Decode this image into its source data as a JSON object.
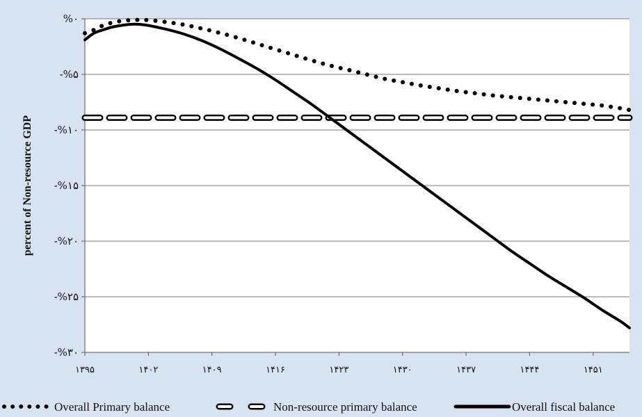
{
  "chart_data": {
    "type": "line",
    "title": "",
    "xlabel": "",
    "ylabel": "percent of Non-resource GDP",
    "xlim": [
      1395,
      1455
    ],
    "ylim": [
      -30,
      0
    ],
    "y_ticks": [
      {
        "value": 0,
        "label": "%۰"
      },
      {
        "value": -5,
        "label": "-%۵"
      },
      {
        "value": -10,
        "label": "-%۱۰"
      },
      {
        "value": -15,
        "label": "-%۱۵"
      },
      {
        "value": -20,
        "label": "-%۲۰"
      },
      {
        "value": -25,
        "label": "-%۲۵"
      },
      {
        "value": -30,
        "label": "-%۳۰"
      }
    ],
    "x_ticks": [
      {
        "value": 1395,
        "label": "۱۳۹۵"
      },
      {
        "value": 1402,
        "label": "۱۴۰۲"
      },
      {
        "value": 1409,
        "label": "۱۴۰۹"
      },
      {
        "value": 1416,
        "label": "۱۴۱۶"
      },
      {
        "value": 1423,
        "label": "۱۴۲۳"
      },
      {
        "value": 1430,
        "label": "۱۴۳۰"
      },
      {
        "value": 1437,
        "label": "۱۴۳۷"
      },
      {
        "value": 1444,
        "label": "۱۴۴۴"
      },
      {
        "value": 1451,
        "label": "۱۴۵۱"
      }
    ],
    "grid": true,
    "legend_position": "bottom",
    "series": [
      {
        "name": "Overall Primary balance",
        "style": "dotted",
        "color": "#000000",
        "points": [
          [
            1395,
            -1.3
          ],
          [
            1396,
            -1.0
          ],
          [
            1397,
            -0.6
          ],
          [
            1398,
            -0.35
          ],
          [
            1399,
            -0.2
          ],
          [
            1400,
            -0.12
          ],
          [
            1401,
            -0.1
          ],
          [
            1402,
            -0.12
          ],
          [
            1404,
            -0.3
          ],
          [
            1406,
            -0.55
          ],
          [
            1408,
            -0.9
          ],
          [
            1410,
            -1.3
          ],
          [
            1412,
            -1.75
          ],
          [
            1414,
            -2.25
          ],
          [
            1416,
            -2.75
          ],
          [
            1418,
            -3.25
          ],
          [
            1420,
            -3.75
          ],
          [
            1422,
            -4.2
          ],
          [
            1424,
            -4.6
          ],
          [
            1426,
            -5.0
          ],
          [
            1428,
            -5.4
          ],
          [
            1430,
            -5.7
          ],
          [
            1432,
            -6.0
          ],
          [
            1434,
            -6.25
          ],
          [
            1436,
            -6.5
          ],
          [
            1438,
            -6.7
          ],
          [
            1440,
            -6.9
          ],
          [
            1442,
            -7.05
          ],
          [
            1444,
            -7.2
          ],
          [
            1446,
            -7.35
          ],
          [
            1448,
            -7.5
          ],
          [
            1450,
            -7.65
          ],
          [
            1452,
            -7.8
          ],
          [
            1454,
            -8.05
          ],
          [
            1455,
            -8.2
          ]
        ]
      },
      {
        "name": "Non-resource primary balance",
        "style": "dashed",
        "color": "#000000",
        "points": [
          [
            1395,
            -8.9
          ],
          [
            1455,
            -8.9
          ]
        ]
      },
      {
        "name": "Overall fiscal balance",
        "style": "solid",
        "color": "#000000",
        "points": [
          [
            1395,
            -1.9
          ],
          [
            1396,
            -1.3
          ],
          [
            1397,
            -1.0
          ],
          [
            1398,
            -0.75
          ],
          [
            1399,
            -0.6
          ],
          [
            1400,
            -0.5
          ],
          [
            1401,
            -0.5
          ],
          [
            1402,
            -0.6
          ],
          [
            1404,
            -0.95
          ],
          [
            1406,
            -1.4
          ],
          [
            1408,
            -2.0
          ],
          [
            1410,
            -2.75
          ],
          [
            1412,
            -3.6
          ],
          [
            1414,
            -4.5
          ],
          [
            1416,
            -5.5
          ],
          [
            1418,
            -6.6
          ],
          [
            1420,
            -7.7
          ],
          [
            1422,
            -8.9
          ],
          [
            1424,
            -10.1
          ],
          [
            1426,
            -11.3
          ],
          [
            1428,
            -12.5
          ],
          [
            1430,
            -13.7
          ],
          [
            1432,
            -14.9
          ],
          [
            1434,
            -16.1
          ],
          [
            1436,
            -17.3
          ],
          [
            1438,
            -18.5
          ],
          [
            1440,
            -19.7
          ],
          [
            1442,
            -20.9
          ],
          [
            1444,
            -22.0
          ],
          [
            1446,
            -23.1
          ],
          [
            1448,
            -24.1
          ],
          [
            1450,
            -25.1
          ],
          [
            1452,
            -26.2
          ],
          [
            1454,
            -27.2
          ],
          [
            1455,
            -27.8
          ]
        ]
      }
    ]
  }
}
